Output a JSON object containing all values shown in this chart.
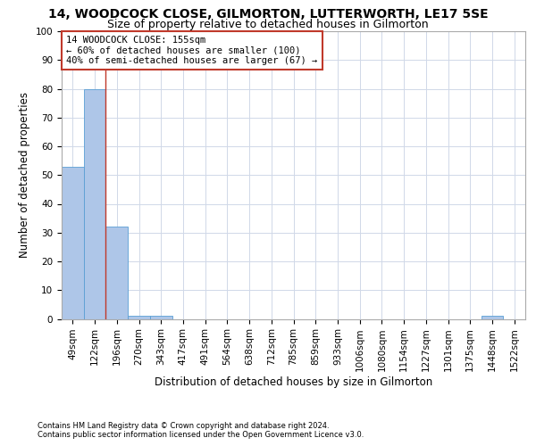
{
  "title": "14, WOODCOCK CLOSE, GILMORTON, LUTTERWORTH, LE17 5SE",
  "subtitle": "Size of property relative to detached houses in Gilmorton",
  "xlabel": "Distribution of detached houses by size in Gilmorton",
  "ylabel": "Number of detached properties",
  "bar_color": "#aec6e8",
  "bar_edge_color": "#5a9fd4",
  "vline_color": "#c0392b",
  "vline_x": 1.5,
  "annotation_text": "14 WOODCOCK CLOSE: 155sqm\n← 60% of detached houses are smaller (100)\n40% of semi-detached houses are larger (67) →",
  "annotation_box_color": "#ffffff",
  "annotation_box_edge": "#c0392b",
  "bins": [
    "49sqm",
    "122sqm",
    "196sqm",
    "270sqm",
    "343sqm",
    "417sqm",
    "491sqm",
    "564sqm",
    "638sqm",
    "712sqm",
    "785sqm",
    "859sqm",
    "933sqm",
    "1006sqm",
    "1080sqm",
    "1154sqm",
    "1227sqm",
    "1301sqm",
    "1375sqm",
    "1448sqm",
    "1522sqm"
  ],
  "values": [
    53,
    80,
    32,
    1,
    1,
    0,
    0,
    0,
    0,
    0,
    0,
    0,
    0,
    0,
    0,
    0,
    0,
    0,
    0,
    1,
    0
  ],
  "ylim": [
    0,
    100
  ],
  "yticks": [
    0,
    10,
    20,
    30,
    40,
    50,
    60,
    70,
    80,
    90,
    100
  ],
  "background_color": "#ffffff",
  "grid_color": "#d0d8e8",
  "footer_line1": "Contains HM Land Registry data © Crown copyright and database right 2024.",
  "footer_line2": "Contains public sector information licensed under the Open Government Licence v3.0.",
  "title_fontsize": 10,
  "subtitle_fontsize": 9,
  "xlabel_fontsize": 8.5,
  "ylabel_fontsize": 8.5,
  "tick_fontsize": 7.5,
  "annotation_fontsize": 7.5,
  "footer_fontsize": 6.0
}
